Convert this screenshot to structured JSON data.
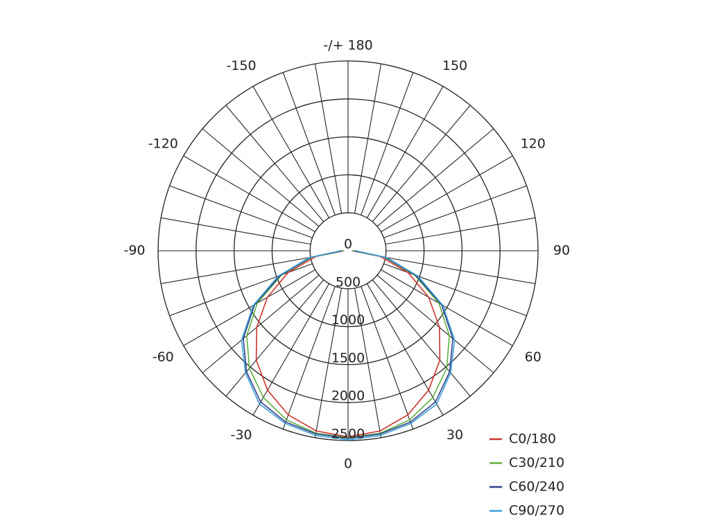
{
  "chart_data": {
    "type": "polar",
    "x": [
      -90,
      -80,
      -70,
      -60,
      -50,
      -40,
      -30,
      -20,
      -10,
      0,
      10,
      20,
      30,
      40,
      50,
      60,
      70,
      80,
      90
    ],
    "series": [
      {
        "name": "C0/180",
        "color": "#d0312d",
        "values": [
          50,
          430,
          840,
          1225,
          1570,
          1880,
          2120,
          2300,
          2410,
          2450,
          2410,
          2300,
          2120,
          1880,
          1570,
          1225,
          840,
          430,
          50
        ]
      },
      {
        "name": "C30/210",
        "color": "#5fae3c",
        "values": [
          60,
          480,
          930,
          1380,
          1740,
          2020,
          2230,
          2370,
          2440,
          2460,
          2440,
          2370,
          2230,
          2020,
          1740,
          1380,
          930,
          480,
          60
        ]
      },
      {
        "name": "C60/240",
        "color": "#2d3f8a",
        "values": [
          80,
          500,
          950,
          1420,
          1800,
          2080,
          2300,
          2400,
          2450,
          2470,
          2450,
          2400,
          2300,
          2080,
          1800,
          1420,
          950,
          500,
          80
        ]
      },
      {
        "name": "C90/270",
        "color": "#3a9fd8",
        "values": [
          100,
          520,
          980,
          1440,
          1830,
          2100,
          2330,
          2420,
          2470,
          2490,
          2470,
          2420,
          2330,
          2100,
          1830,
          1440,
          980,
          520,
          100
        ]
      }
    ],
    "rlim": [
      0,
      2500
    ],
    "rticks": [
      0,
      500,
      1000,
      1500,
      2000,
      2500
    ],
    "thetaticks": [
      0,
      30,
      60,
      90,
      120,
      150,
      {
        "value": 180,
        "label": "-/+ 180"
      },
      -150,
      -120,
      -90,
      -60,
      -30
    ],
    "thetagrid": [
      -170,
      -160,
      -150,
      -140,
      -130,
      -120,
      -110,
      -100,
      -90,
      -80,
      -70,
      -60,
      -50,
      -40,
      -30,
      -20,
      -10,
      0,
      10,
      20,
      30,
      40,
      50,
      60,
      70,
      80,
      90,
      100,
      110,
      120,
      130,
      140,
      150,
      160,
      170,
      180
    ],
    "legend": "bottom-right"
  }
}
